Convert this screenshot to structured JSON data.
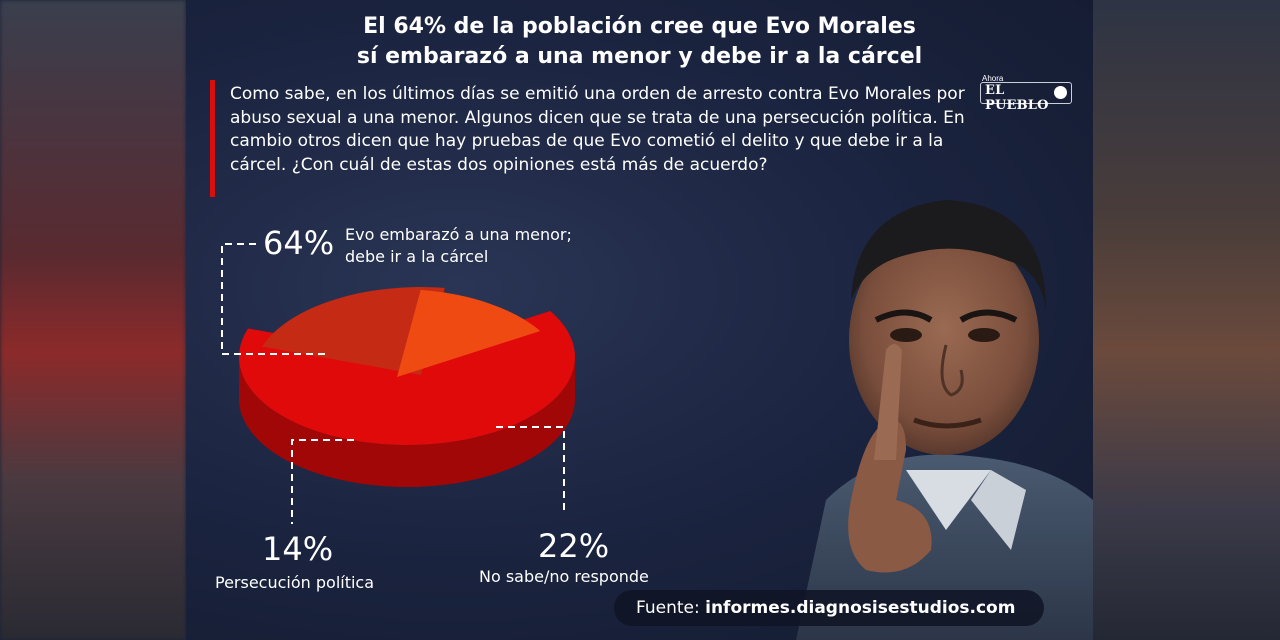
{
  "title": {
    "line1": "El 64% de la población cree que Evo Morales",
    "line2": "sí embarazó a una menor y debe ir a la cárcel"
  },
  "logo": {
    "small": "Ahora",
    "name": "EL PUEBLO"
  },
  "question": "Como sabe, en los últimos días se emitió una orden de arresto contra Evo Morales por abuso sexual a una menor. Algunos dicen que se trata de una persecución política. En cambio otros dicen que hay pruebas de que Evo cometió el delito y que debe ir a la cárcel. ¿Con cuál de estas dos opiniones está más de acuerdo?",
  "source": {
    "prefix": "Fuente:",
    "url": "informes.diagnosisestudios.com"
  },
  "colors": {
    "slice_64": "#e00a0a",
    "slice_22": "#c42a14",
    "slice_14": "#ee4a12",
    "accent": "#d80f0f"
  },
  "chart_data": {
    "type": "pie",
    "style": "3d-exploded",
    "slices": [
      {
        "label_line1": "Evo embarazó a una menor;",
        "label_line2": "debe ir a la cárcel",
        "value": 64,
        "value_label": "64%"
      },
      {
        "label_line1": "No sabe/no responde",
        "label_line2": "",
        "value": 22,
        "value_label": "22%"
      },
      {
        "label_line1": "Persecución política",
        "label_line2": "",
        "value": 14,
        "value_label": "14%"
      }
    ]
  }
}
